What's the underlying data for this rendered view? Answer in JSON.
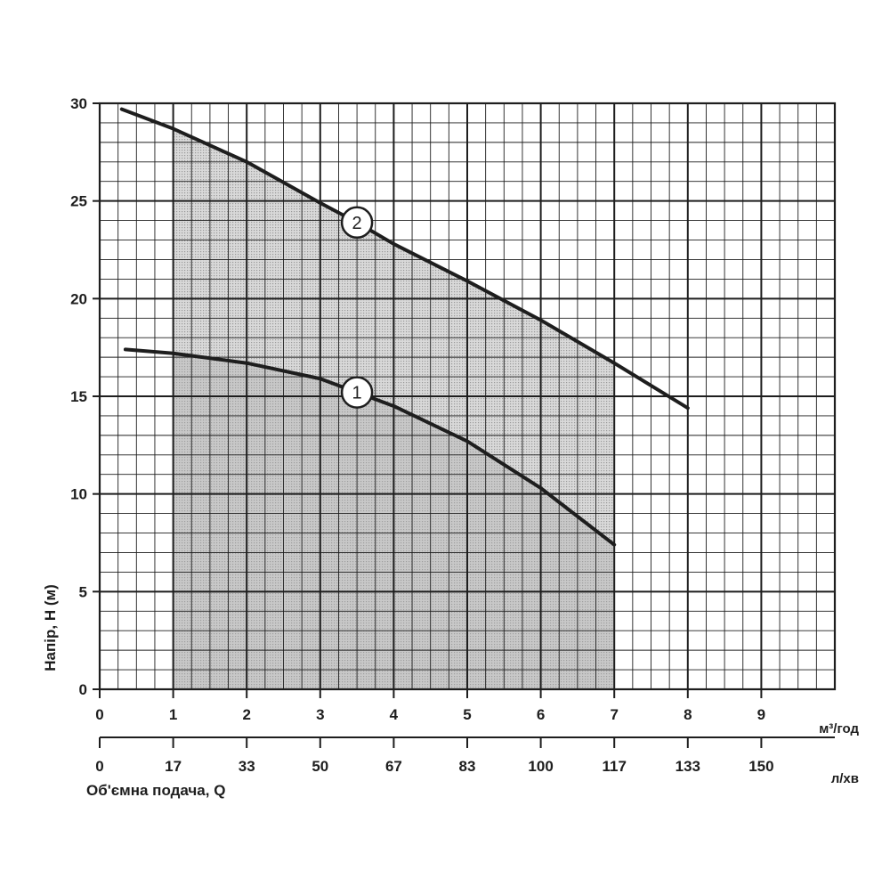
{
  "chart_data": {
    "type": "line",
    "xlabel": "Об'ємна подача, Q",
    "ylabel": "Напір, H (м)",
    "x_unit_primary": "м³/год",
    "x_unit_secondary": "л/хв",
    "xlim": [
      0,
      10
    ],
    "ylim": [
      0,
      30
    ],
    "x_ticks": [
      0,
      1,
      2,
      3,
      4,
      5,
      6,
      7,
      8,
      9
    ],
    "x_tick_labels": [
      "0",
      "1",
      "2",
      "3",
      "4",
      "5",
      "6",
      "7",
      "8",
      "9"
    ],
    "x2_ticks": [
      0,
      1,
      2,
      3,
      4,
      5,
      6,
      7,
      8,
      9
    ],
    "x2_tick_labels": [
      "0",
      "17",
      "33",
      "50",
      "67",
      "83",
      "100",
      "117",
      "133",
      "150"
    ],
    "y_ticks": [
      0,
      5,
      10,
      15,
      20,
      25,
      30
    ],
    "y_tick_labels": [
      "0",
      "5",
      "10",
      "15",
      "20",
      "25",
      "30"
    ],
    "grid": true,
    "shaded_range": [
      1,
      7
    ],
    "series": [
      {
        "label": "1",
        "label_at": 3.5,
        "color": "#1e1e1e",
        "x": [
          0.35,
          1,
          2,
          3,
          3.5,
          4,
          5,
          6,
          7
        ],
        "y": [
          17.4,
          17.2,
          16.7,
          15.9,
          15.2,
          14.5,
          12.7,
          10.3,
          7.4
        ]
      },
      {
        "label": "2",
        "label_at": 3.5,
        "color": "#1e1e1e",
        "x": [
          0.3,
          1,
          2,
          3,
          3.5,
          4,
          5,
          6,
          7,
          8
        ],
        "y": [
          29.7,
          28.7,
          27.0,
          24.9,
          23.9,
          22.8,
          20.9,
          18.9,
          16.7,
          14.4
        ]
      }
    ]
  },
  "colors": {
    "ink": "#1e1e1e",
    "shade_light": "#d9d9d9",
    "shade_dark": "#c4c4c4",
    "background": "#ffffff"
  }
}
